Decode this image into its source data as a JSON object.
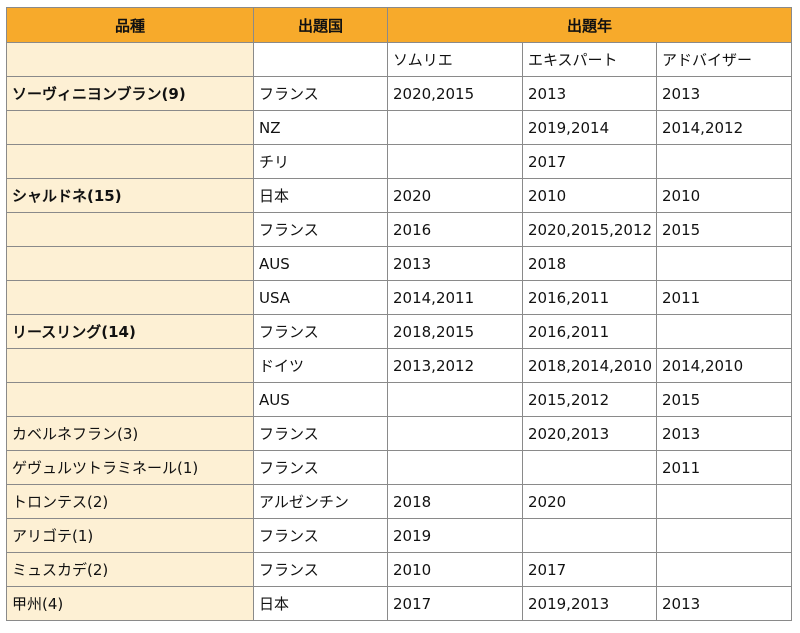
{
  "header": {
    "variety": "品種",
    "country": "出題国",
    "year": "出題年"
  },
  "subheader": {
    "variety": "",
    "country": "",
    "sommelier": "ソムリエ",
    "expert": "エキスパート",
    "adviser": "アドバイザー"
  },
  "rows": [
    {
      "variety": "ソーヴィニヨンブラン(9)",
      "bold": true,
      "country": "フランス",
      "sommelier": "2020,2015",
      "expert": "2013",
      "adviser": "2013"
    },
    {
      "variety": "",
      "bold": false,
      "country": "NZ",
      "sommelier": "",
      "expert": "2019,2014",
      "adviser": "2014,2012"
    },
    {
      "variety": "",
      "bold": false,
      "country": "チリ",
      "sommelier": "",
      "expert": "2017",
      "adviser": ""
    },
    {
      "variety": "シャルドネ(15)",
      "bold": true,
      "country": "日本",
      "sommelier": "2020",
      "expert": "2010",
      "adviser": "2010"
    },
    {
      "variety": "",
      "bold": false,
      "country": "フランス",
      "sommelier": "2016",
      "expert": "2020,2015,2012",
      "adviser": "2015"
    },
    {
      "variety": "",
      "bold": false,
      "country": "AUS",
      "sommelier": "2013",
      "expert": "2018",
      "adviser": ""
    },
    {
      "variety": "",
      "bold": false,
      "country": "USA",
      "sommelier": "2014,2011",
      "expert": "2016,2011",
      "adviser": "2011"
    },
    {
      "variety": "リースリング(14)",
      "bold": true,
      "country": "フランス",
      "sommelier": "2018,2015",
      "expert": "2016,2011",
      "adviser": ""
    },
    {
      "variety": "",
      "bold": false,
      "country": "ドイツ",
      "sommelier": "2013,2012",
      "expert": "2018,2014,2010",
      "adviser": "2014,2010"
    },
    {
      "variety": "",
      "bold": false,
      "country": "AUS",
      "sommelier": "",
      "expert": "2015,2012",
      "adviser": "2015"
    },
    {
      "variety": "カベルネフラン(3)",
      "bold": false,
      "country": "フランス",
      "sommelier": "",
      "expert": "2020,2013",
      "adviser": "2013"
    },
    {
      "variety": "ゲヴュルツトラミネール(1)",
      "bold": false,
      "country": "フランス",
      "sommelier": "",
      "expert": "",
      "adviser": "2011"
    },
    {
      "variety": "トロンテス(2)",
      "bold": false,
      "country": "アルゼンチン",
      "sommelier": "2018",
      "expert": "2020",
      "adviser": ""
    },
    {
      "variety": "アリゴテ(1)",
      "bold": false,
      "country": "フランス",
      "sommelier": "2019",
      "expert": "",
      "adviser": ""
    },
    {
      "variety": "ミュスカデ(2)",
      "bold": false,
      "country": "フランス",
      "sommelier": "2010",
      "expert": "2017",
      "adviser": ""
    },
    {
      "variety": "甲州(4)",
      "bold": false,
      "country": "日本",
      "sommelier": "2017",
      "expert": "2019,2013",
      "adviser": "2013"
    }
  ],
  "colors": {
    "header_bg": "#f7aa2b",
    "variety_bg": "#fdf0d4",
    "border": "#8a8a8a"
  }
}
